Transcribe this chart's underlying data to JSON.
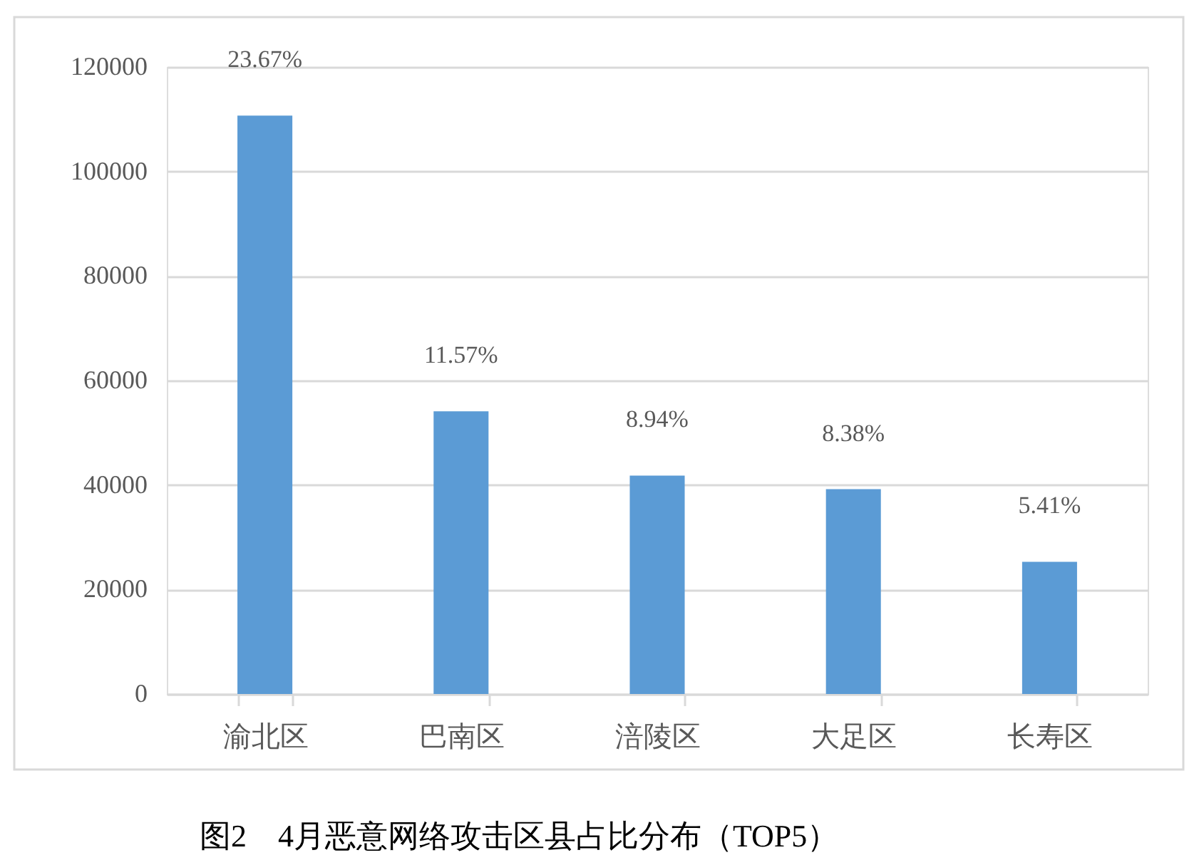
{
  "chart_data": {
    "type": "bar",
    "title": "图2　4月恶意网络攻击区县占比分布（TOP5）",
    "categories": [
      "渝北区",
      "巴南区",
      "涪陵区",
      "大足区",
      "长寿区"
    ],
    "values": [
      110700,
      54100,
      41800,
      39200,
      25300
    ],
    "color": "#5b9bd5",
    "annotations": [
      {
        "text": "23.67%",
        "x": "渝北区",
        "y": 110700
      },
      {
        "text": "11.57%",
        "x": "巴南区",
        "y": 54100
      },
      {
        "text": "8.94%",
        "x": "涪陵区",
        "y": 41800
      },
      {
        "text": "8.38%",
        "x": "大足区",
        "y": 39200
      },
      {
        "text": "5.41%",
        "x": "长寿区",
        "y": 25300
      }
    ],
    "ylim": [
      0,
      120000
    ],
    "yticks": [
      0,
      20000,
      40000,
      60000,
      80000,
      100000,
      120000
    ],
    "grid": "y"
  }
}
